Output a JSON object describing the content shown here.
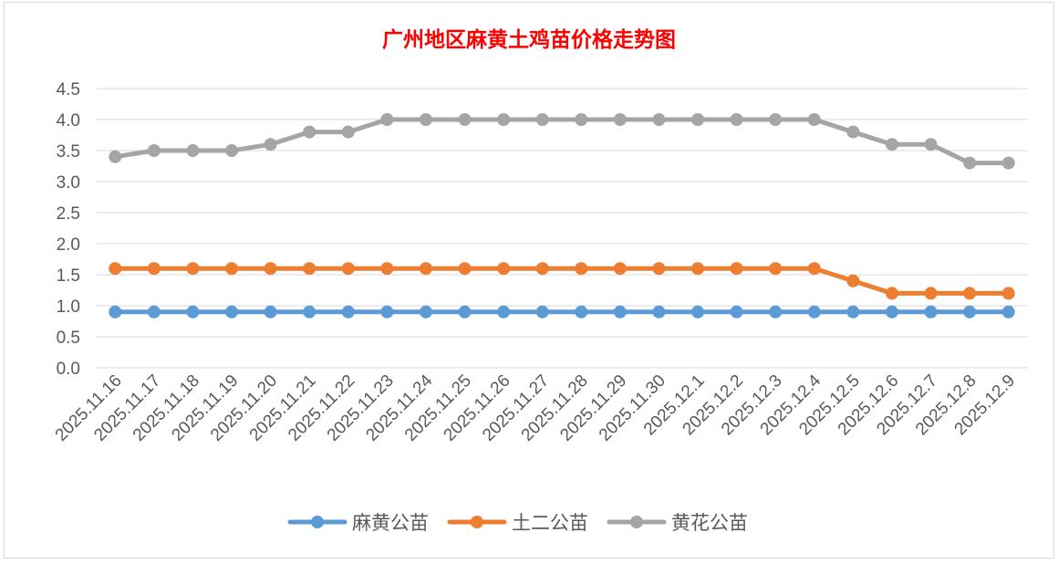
{
  "chart_data": {
    "type": "line",
    "title": "广州地区麻黄土鸡苗价格走势图",
    "xlabel": "",
    "ylabel": "",
    "ylim": [
      0,
      4.5
    ],
    "yticks": [
      "0.0",
      "0.5",
      "1.0",
      "1.5",
      "2.0",
      "2.5",
      "3.0",
      "3.5",
      "4.0",
      "4.5"
    ],
    "grid": true,
    "legend_position": "bottom",
    "x": [
      "2025.11.16",
      "2025.11.17",
      "2025.11.18",
      "2025.11.19",
      "2025.11.20",
      "2025.11.21",
      "2025.11.22",
      "2025.11.23",
      "2025.11.24",
      "2025.11.25",
      "2025.11.26",
      "2025.11.27",
      "2025.11.28",
      "2025.11.29",
      "2025.11.30",
      "2025.12.1",
      "2025.12.2",
      "2025.12.3",
      "2025.12.4",
      "2025.12.5",
      "2025.12.6",
      "2025.12.7",
      "2025.12.8",
      "2025.12.9"
    ],
    "series": [
      {
        "name": "麻黄公苗",
        "color": "#5b9bd5",
        "values": [
          0.9,
          0.9,
          0.9,
          0.9,
          0.9,
          0.9,
          0.9,
          0.9,
          0.9,
          0.9,
          0.9,
          0.9,
          0.9,
          0.9,
          0.9,
          0.9,
          0.9,
          0.9,
          0.9,
          0.9,
          0.9,
          0.9,
          0.9,
          0.9
        ]
      },
      {
        "name": "土二公苗",
        "color": "#ed7d31",
        "values": [
          1.6,
          1.6,
          1.6,
          1.6,
          1.6,
          1.6,
          1.6,
          1.6,
          1.6,
          1.6,
          1.6,
          1.6,
          1.6,
          1.6,
          1.6,
          1.6,
          1.6,
          1.6,
          1.6,
          1.4,
          1.2,
          1.2,
          1.2,
          1.2
        ]
      },
      {
        "name": "黄花公苗",
        "color": "#a5a5a5",
        "values": [
          3.4,
          3.5,
          3.5,
          3.5,
          3.6,
          3.8,
          3.8,
          4.0,
          4.0,
          4.0,
          4.0,
          4.0,
          4.0,
          4.0,
          4.0,
          4.0,
          4.0,
          4.0,
          4.0,
          3.8,
          3.6,
          3.6,
          3.3,
          3.3
        ]
      }
    ]
  }
}
